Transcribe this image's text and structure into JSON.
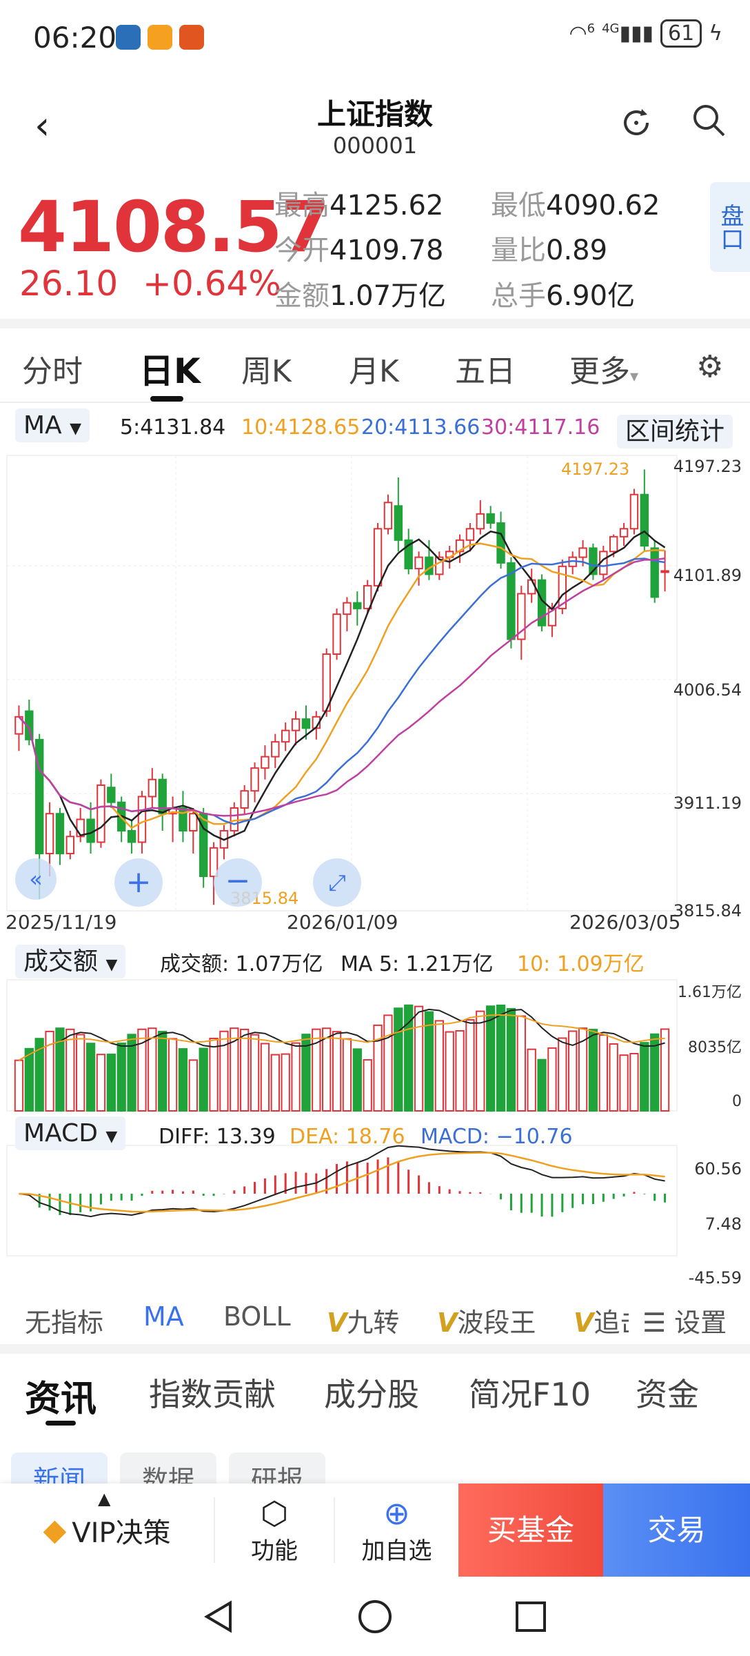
{
  "status": {
    "time": "06:20",
    "signal": "4G",
    "wifi": "6",
    "battery": "61"
  },
  "header": {
    "title": "上证指数",
    "code": "000001"
  },
  "quote": {
    "price": "4108.57",
    "change": "26.10",
    "change_pct": "+0.64%",
    "high_label": "最高",
    "high": "4125.62",
    "low_label": "最低",
    "low": "4090.62",
    "open_label": "今开",
    "open": "4109.78",
    "volratio_label": "量比",
    "volratio": "0.89",
    "amount_label": "金额",
    "amount": "1.07万亿",
    "hands_label": "总手",
    "hands": "6.90亿",
    "pankou": "盘口"
  },
  "ktabs": [
    "分时",
    "日K",
    "周K",
    "月K",
    "五日",
    "更多"
  ],
  "ma_line": {
    "selector": "MA",
    "ma5": "5:4131.84",
    "ma10": "10:4128.65",
    "ma20": "20:4113.66",
    "ma30": "30:4117.16",
    "range_stats": "区间统计"
  },
  "price_axis": {
    "top": "4197.23",
    "l2": "4101.89",
    "l3": "4006.54",
    "l4": "3911.19",
    "bottom": "3815.84"
  },
  "price_annotations": {
    "high_mark": "4197.23",
    "low_mark": "3815.84"
  },
  "dates": {
    "start": "2025/11/19",
    "mid": "2026/01/09",
    "end": "2026/03/05"
  },
  "volume": {
    "selector": "成交额",
    "amount": "成交额: 1.07万亿",
    "ma5": "MA 5: 1.21万亿",
    "ma10": "10: 1.09万亿",
    "axis_top": "1.61万亿",
    "axis_mid": "8035亿",
    "axis_bottom": "0"
  },
  "macd": {
    "selector": "MACD",
    "diff": "DIFF: 13.39",
    "dea": "DEA: 18.76",
    "macd": "MACD: −10.76",
    "axis_top": "60.56",
    "axis_mid": "7.48",
    "axis_bottom": "-45.59"
  },
  "indicator_tabs": [
    "无指标",
    "MA",
    "BOLL",
    "九转",
    "波段王",
    "追击"
  ],
  "indicator_settings": "设置",
  "news_tabs": [
    "资讯",
    "指数贡献",
    "成分股",
    "简况F10",
    "资金"
  ],
  "sub_tabs": [
    "新闻",
    "数据",
    "研报"
  ],
  "bottom_bar": {
    "vip": "VIP决策",
    "func": "功能",
    "add": "加自选",
    "buy_fund": "买基金",
    "trade": "交易"
  },
  "colors": {
    "up": "#e0333a",
    "down": "#1fa33a",
    "ma5": "#222222",
    "ma10": "#f0a020",
    "ma20": "#3a6fd8",
    "ma30": "#c040a0",
    "accent": "#3a72ee"
  },
  "chart_data": {
    "type": "candlestick",
    "ylim": [
      3815.84,
      4197.23
    ],
    "candles": [
      [
        3965,
        3990,
        3950,
        3980
      ],
      [
        3985,
        3995,
        3955,
        3960
      ],
      [
        3960,
        3965,
        3820,
        3860
      ],
      [
        3860,
        3905,
        3840,
        3895
      ],
      [
        3895,
        3900,
        3850,
        3860
      ],
      [
        3860,
        3880,
        3855,
        3875
      ],
      [
        3875,
        3900,
        3870,
        3890
      ],
      [
        3890,
        3905,
        3860,
        3870
      ],
      [
        3870,
        3925,
        3865,
        3920
      ],
      [
        3918,
        3930,
        3900,
        3905
      ],
      [
        3905,
        3910,
        3870,
        3880
      ],
      [
        3880,
        3890,
        3860,
        3870
      ],
      [
        3870,
        3915,
        3860,
        3910
      ],
      [
        3910,
        3935,
        3900,
        3925
      ],
      [
        3925,
        3930,
        3880,
        3895
      ],
      [
        3895,
        3910,
        3870,
        3900
      ],
      [
        3900,
        3915,
        3870,
        3880
      ],
      [
        3880,
        3900,
        3860,
        3895
      ],
      [
        3895,
        3900,
        3830,
        3840
      ],
      [
        3840,
        3870,
        3815,
        3865
      ],
      [
        3865,
        3885,
        3855,
        3880
      ],
      [
        3880,
        3905,
        3875,
        3900
      ],
      [
        3900,
        3920,
        3895,
        3915
      ],
      [
        3915,
        3940,
        3905,
        3935
      ],
      [
        3935,
        3955,
        3925,
        3945
      ],
      [
        3945,
        3965,
        3935,
        3958
      ],
      [
        3958,
        3975,
        3950,
        3968
      ],
      [
        3968,
        3985,
        3955,
        3978
      ],
      [
        3978,
        3990,
        3960,
        3970
      ],
      [
        3970,
        3985,
        3960,
        3980
      ],
      [
        3985,
        4040,
        3980,
        4035
      ],
      [
        4035,
        4075,
        4030,
        4070
      ],
      [
        4070,
        4085,
        4055,
        4080
      ],
      [
        4080,
        4090,
        4060,
        4075
      ],
      [
        4075,
        4100,
        4070,
        4095
      ],
      [
        4095,
        4150,
        4090,
        4145
      ],
      [
        4145,
        4175,
        4140,
        4168
      ],
      [
        4165,
        4190,
        4125,
        4135
      ],
      [
        4135,
        4145,
        4105,
        4110
      ],
      [
        4110,
        4125,
        4095,
        4120
      ],
      [
        4120,
        4135,
        4100,
        4105
      ],
      [
        4105,
        4125,
        4100,
        4120
      ],
      [
        4120,
        4130,
        4110,
        4125
      ],
      [
        4125,
        4140,
        4115,
        4135
      ],
      [
        4135,
        4150,
        4125,
        4145
      ],
      [
        4145,
        4170,
        4140,
        4158
      ],
      [
        4158,
        4165,
        4145,
        4150
      ],
      [
        4150,
        4160,
        4110,
        4115
      ],
      [
        4115,
        4120,
        4040,
        4048
      ],
      [
        4048,
        4095,
        4030,
        4088
      ],
      [
        4088,
        4110,
        4080,
        4100
      ],
      [
        4100,
        4105,
        4055,
        4060
      ],
      [
        4060,
        4080,
        4050,
        4075
      ],
      [
        4075,
        4118,
        4070,
        4112
      ],
      [
        4112,
        4125,
        4105,
        4120
      ],
      [
        4120,
        4135,
        4112,
        4128
      ],
      [
        4128,
        4132,
        4100,
        4105
      ],
      [
        4105,
        4130,
        4100,
        4125
      ],
      [
        4125,
        4140,
        4120,
        4138
      ],
      [
        4138,
        4150,
        4130,
        4145
      ],
      [
        4145,
        4180,
        4140,
        4175
      ],
      [
        4175,
        4197,
        4125,
        4130
      ],
      [
        4128,
        4135,
        4080,
        4085
      ],
      [
        4108,
        4126,
        4090,
        4108
      ]
    ],
    "volume_up": "red",
    "volume_down": "green"
  }
}
